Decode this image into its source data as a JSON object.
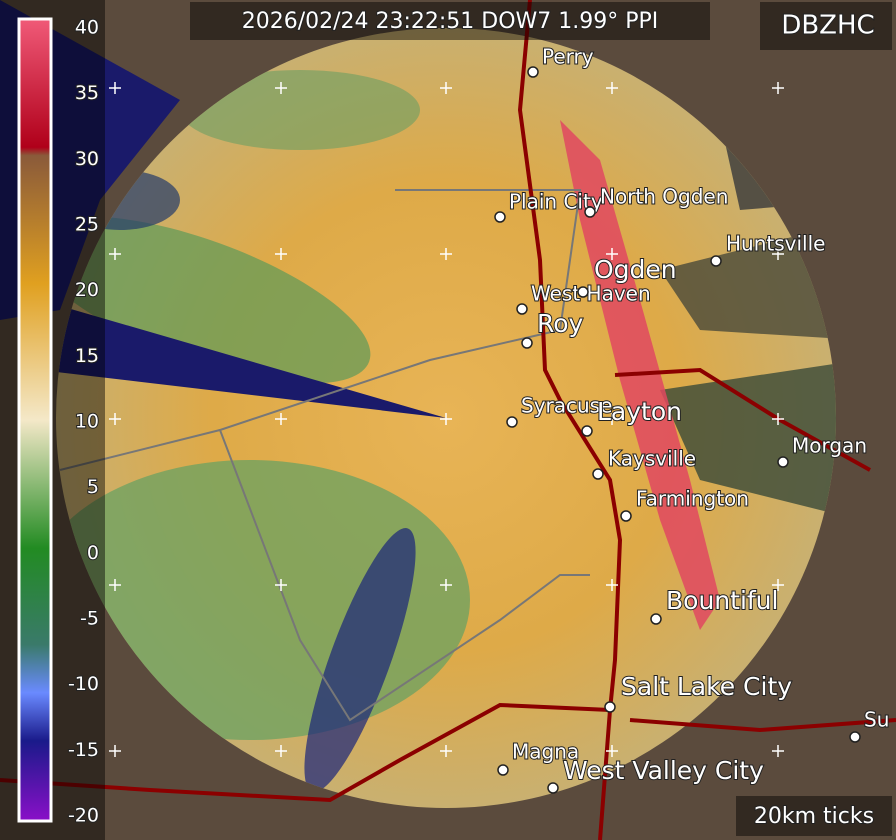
{
  "header": {
    "title": "2026/02/24 23:22:51 DOW7 1.99° PPI",
    "product": "DBZHC",
    "scale_note": "20km ticks"
  },
  "colorbar": {
    "ticks": [
      40,
      35,
      30,
      25,
      20,
      15,
      10,
      5,
      0,
      -5,
      -10,
      -15,
      -20
    ]
  },
  "places": [
    {
      "label": "Perry"
    },
    {
      "label": "Plain City"
    },
    {
      "label": "North Ogden"
    },
    {
      "label": "Huntsville"
    },
    {
      "label": "Ogden"
    },
    {
      "label": "West Haven"
    },
    {
      "label": "Roy"
    },
    {
      "label": "Syracuse"
    },
    {
      "label": "Layton"
    },
    {
      "label": "Kaysville"
    },
    {
      "label": "Morgan"
    },
    {
      "label": "Farmington"
    },
    {
      "label": "Bountiful"
    },
    {
      "label": "Salt Lake City"
    },
    {
      "label": "Magna"
    },
    {
      "label": "West Valley City"
    },
    {
      "label": "Su"
    }
  ]
}
